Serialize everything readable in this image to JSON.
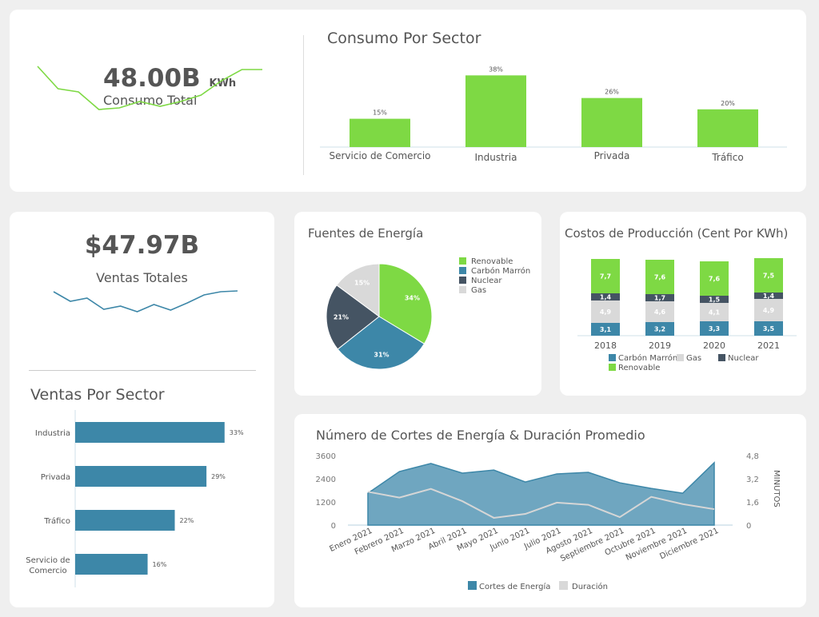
{
  "colors": {
    "green": "#7ed944",
    "blue": "#3d87a8",
    "navy": "#455463",
    "gray": "#d9d9d9",
    "area": "#6fa6c0",
    "line": "#3d87a8"
  },
  "consumo_total": {
    "value": "48.00B",
    "unit": "KWh",
    "label": "Consumo Total",
    "spark": [
      72,
      58,
      56,
      45,
      46,
      50,
      47,
      50,
      54,
      63,
      70,
      70
    ]
  },
  "consumo_sector": {
    "title": "Consumo Por Sector",
    "type": "bar",
    "categories": [
      "Servicio de Comercio",
      "Industria",
      "Privada",
      "Tráfico"
    ],
    "values": [
      15,
      38,
      26,
      20
    ],
    "labels": [
      "15%",
      "38%",
      "26%",
      "20%"
    ]
  },
  "ventas_totales": {
    "value": "$47.97B",
    "label": "Ventas Totales",
    "spark": [
      60,
      48,
      52,
      38,
      42,
      35,
      44,
      37,
      46,
      56,
      60,
      61
    ]
  },
  "ventas_sector": {
    "title": "Ventas Por Sector",
    "type": "bar",
    "categories": [
      "Industria",
      "Privada",
      "Tráfico",
      "Servicio de Comercio"
    ],
    "values": [
      33,
      29,
      22,
      16
    ],
    "labels": [
      "33%",
      "29%",
      "22%",
      "16%"
    ]
  },
  "fuentes": {
    "title": "Fuentes de Energía",
    "type": "pie",
    "legend": [
      "Renovable",
      "Carbón Marrón",
      "Nuclear",
      "Gas"
    ],
    "values": [
      34,
      31,
      21,
      15
    ],
    "labels": [
      "34%",
      "31%",
      "21%",
      "15%"
    ]
  },
  "costos": {
    "title": "Costos de Producción (Cent Por KWh)",
    "type": "bar",
    "categories": [
      "2018",
      "2019",
      "2020",
      "2021"
    ],
    "series": [
      {
        "name": "Carbón Marrón",
        "values": [
          "3,1",
          "3,2",
          "3,3",
          "3,5"
        ]
      },
      {
        "name": "Gas",
        "values": [
          "4,9",
          "4,6",
          "4,1",
          "4,9"
        ]
      },
      {
        "name": "Nuclear",
        "values": [
          "1,4",
          "1,7",
          "1,5",
          "1,4"
        ]
      },
      {
        "name": "Renovable",
        "values": [
          "7,7",
          "7,6",
          "7,6",
          "7,5"
        ]
      }
    ]
  },
  "chart_data": {
    "type": "area",
    "title": "Número de Cortes de Energía & Duración Promedio",
    "categories": [
      "Enero 2021",
      "Febrero 2021",
      "Marzo 2021",
      "Abril 2021",
      "Mayo 2021",
      "Junio 2021",
      "Julio 2021",
      "Agosto 2021",
      "Septiembre 2021",
      "Octubre 2021",
      "Noviembre 2021",
      "Diciembre 2021"
    ],
    "series": [
      {
        "name": "Cortes de Energía",
        "values": [
          1650,
          2770,
          3190,
          2690,
          2850,
          2230,
          2650,
          2730,
          2190,
          1900,
          1650,
          3230
        ]
      },
      {
        "name": "Duración",
        "values": [
          2.3,
          1.9,
          2.5,
          1.65,
          0.5,
          0.77,
          1.55,
          1.4,
          0.55,
          1.95,
          1.45,
          1.1
        ]
      }
    ],
    "y_ticks": [
      "3600",
      "2400",
      "1200",
      "0"
    ],
    "y2_ticks": [
      "4,8",
      "3,2",
      "1,6",
      "0"
    ],
    "ylim": [
      0,
      3600
    ],
    "y2lim": [
      0,
      4.8
    ],
    "y2label": "MINUTOS"
  }
}
